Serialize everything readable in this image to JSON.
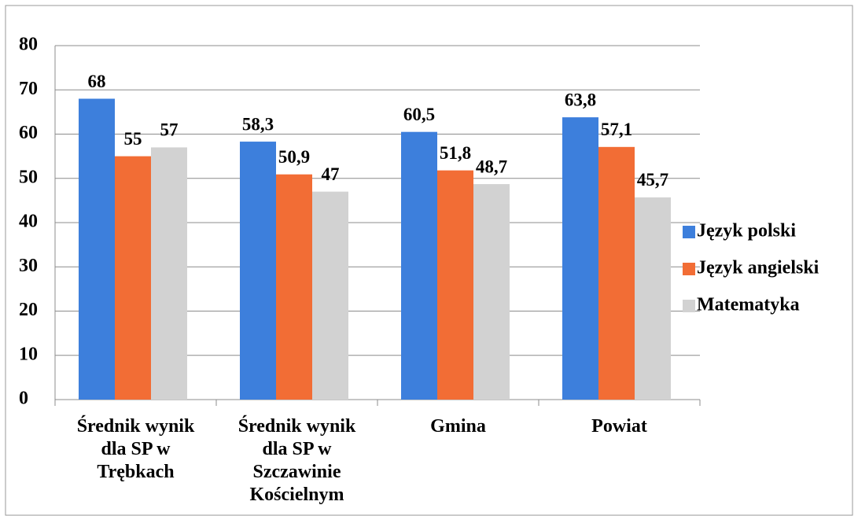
{
  "chart_data": {
    "type": "bar",
    "categories": [
      "Średnik wynik dla SP w Trębkach",
      "Średnik wynik dla SP w Szczawinie Kościelnym",
      "Gmina",
      "Powiat"
    ],
    "series": [
      {
        "name": "Język polski",
        "color": "#3d7fdc",
        "values": [
          68,
          58.3,
          60.5,
          63.8
        ],
        "value_labels": [
          "68",
          "58,3",
          "60,5",
          "63,8"
        ]
      },
      {
        "name": "Język angielski",
        "color": "#f26d35",
        "values": [
          55,
          50.9,
          51.8,
          57.1
        ],
        "value_labels": [
          "55",
          "50,9",
          "51,8",
          "57,1"
        ]
      },
      {
        "name": "Matematyka",
        "color": "#d2d2d2",
        "values": [
          57,
          47,
          48.7,
          45.7
        ],
        "value_labels": [
          "57",
          "47",
          "48,7",
          "45,7"
        ]
      }
    ],
    "ylim": [
      0,
      80
    ],
    "yticks": [
      0,
      10,
      20,
      30,
      40,
      50,
      60,
      70,
      80
    ],
    "grid": true,
    "legend": "right"
  }
}
